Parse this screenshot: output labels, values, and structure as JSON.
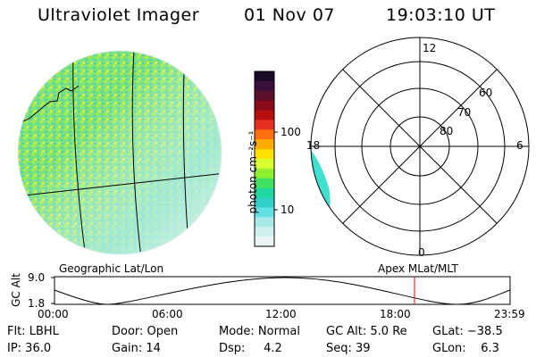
{
  "header": {
    "title": "Ultraviolet Imager",
    "date": "01 Nov 07",
    "time": "19:03:10 UT"
  },
  "colorbar": {
    "unit_label": "photon cm⁻²s⁻¹",
    "ticks": [
      "100",
      "10"
    ],
    "colors": [
      "#1a0a2a",
      "#3a0f3a",
      "#5a0f2a",
      "#8a0a1a",
      "#b81010",
      "#e83020",
      "#ff7010",
      "#ffaa00",
      "#ffe000",
      "#d8ff30",
      "#90f030",
      "#40e060",
      "#20d8a0",
      "#30d0c8",
      "#60e0e0",
      "#a8e8e8",
      "#d0f0f0",
      "#eaf6f6"
    ]
  },
  "polar": {
    "lat_labels": [
      "60",
      "70",
      "80"
    ],
    "mlt_labels": [
      "12",
      "18",
      "6",
      "0"
    ]
  },
  "labels": {
    "geo": "Geographic Lat/Lon",
    "apex": "Apex MLat/MLT"
  },
  "orbit_plot": {
    "ylabel": "GC Alt",
    "y_ticks": [
      "9.0",
      "1.8"
    ],
    "x_ticks": [
      "00:00",
      "06:00",
      "12:00",
      "18:00",
      "23:59"
    ],
    "current_marker_color": "#ff0000"
  },
  "status": {
    "flt": "Flt: LBHL",
    "door": "Door: Open",
    "mode": "Mode: Normal",
    "gc_alt": "GC Alt: 5.0 Re",
    "glat": "GLat: −38.5",
    "ip": "IP: 36.0",
    "gain": "Gain: 14",
    "dsp": "Dsp:     4.2",
    "seq": "Seq: 39",
    "glon": "GLon:    6.3"
  }
}
